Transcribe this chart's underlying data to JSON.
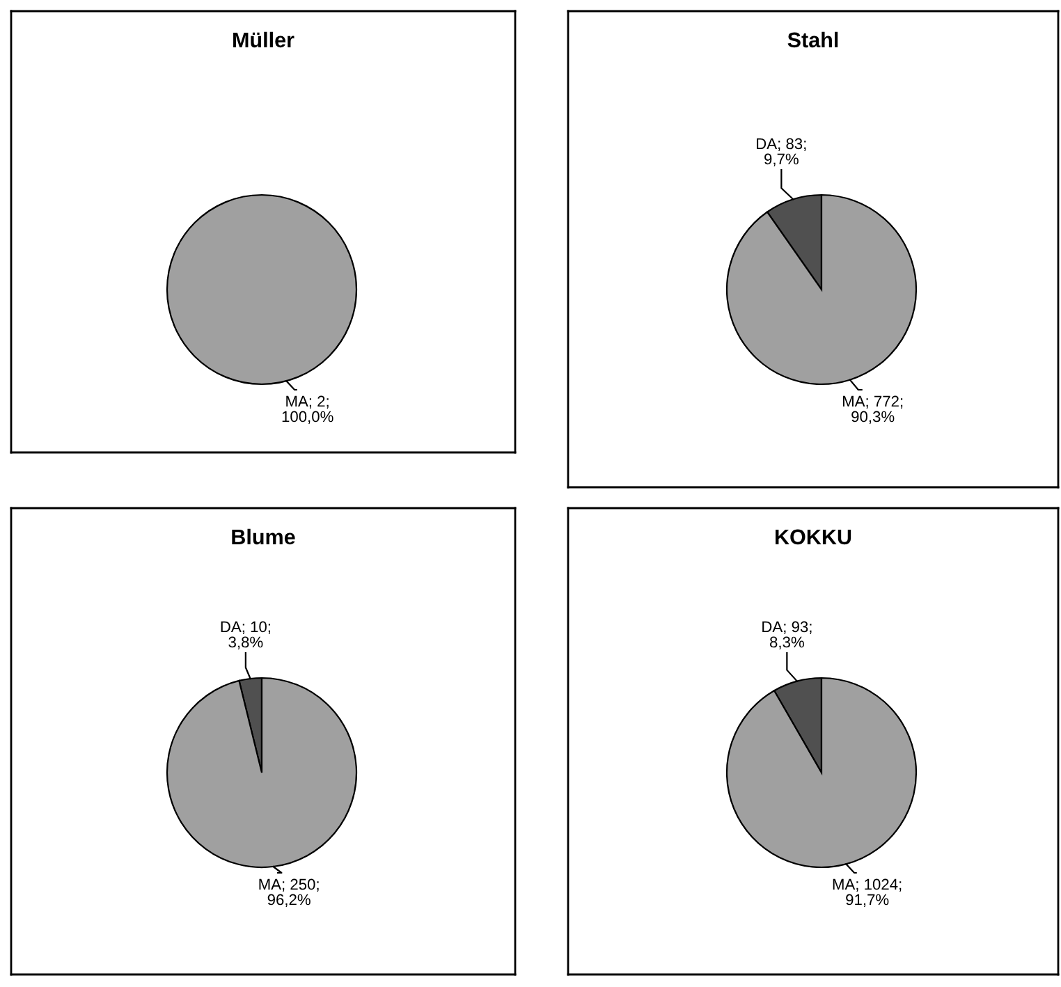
{
  "chart_data": [
    {
      "type": "pie",
      "title": "Müller",
      "categories": [
        "MA"
      ],
      "values": [
        2
      ],
      "colors": [
        "#a0a0a0"
      ],
      "value_labels": [
        "; 2;\n100,0%"
      ]
    },
    {
      "type": "pie",
      "title": "Stahl",
      "categories": [
        "DA",
        "MA"
      ],
      "values": [
        83,
        772
      ],
      "colors": [
        "#505050",
        "#a0a0a0"
      ],
      "value_labels": [
        "; 83;\n9,7%",
        "; 772;\n90,3%"
      ]
    },
    {
      "type": "pie",
      "title": "Blume",
      "categories": [
        "DA",
        "MA"
      ],
      "values": [
        10,
        250
      ],
      "colors": [
        "#505050",
        "#a0a0a0"
      ],
      "value_labels": [
        "; 10;\n3,8%",
        "; 250;\n96,2%"
      ]
    },
    {
      "type": "pie",
      "title": "KOKKU",
      "categories": [
        "DA",
        "MA"
      ],
      "values": [
        93,
        1024
      ],
      "colors": [
        "#505050",
        "#a0a0a0"
      ],
      "value_labels": [
        "; 93;\n8,3%",
        "; 1024;\n91,7%"
      ]
    }
  ]
}
